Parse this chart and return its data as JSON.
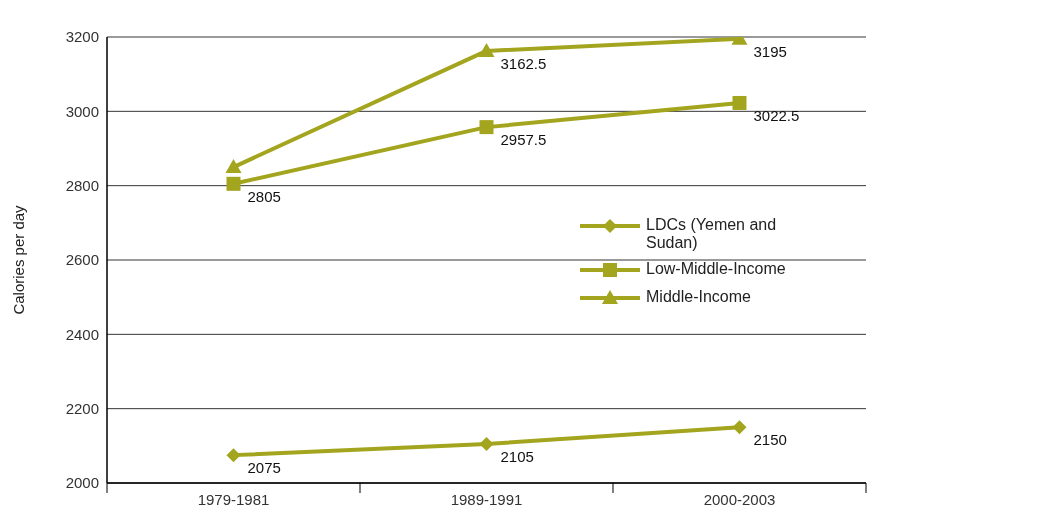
{
  "chart_data": {
    "type": "line",
    "ylabel": "Calories per day",
    "categories": [
      "1979-1981",
      "1989-1991",
      "2000-2003"
    ],
    "series": [
      {
        "name": "LDCs (Yemen and Sudan)",
        "color": "#a2a51d",
        "marker": "diamond",
        "values": [
          2075,
          2105,
          2150
        ],
        "value_labels": [
          "2075",
          "2105",
          "2150"
        ]
      },
      {
        "name": "Low-Middle-Income",
        "color": "#a2a51d",
        "marker": "square",
        "values": [
          2805,
          2957.5,
          3022.5
        ],
        "value_labels": [
          "2805",
          "2957.5",
          "3022.5"
        ]
      },
      {
        "name": "Middle-Income",
        "color": "#a2a51d",
        "marker": "triangle",
        "values": [
          2850,
          3162.5,
          3195
        ],
        "value_labels": [
          null,
          "3162.5",
          "3195"
        ]
      }
    ],
    "ylim": [
      2000,
      3200
    ],
    "yticks": [
      2000,
      2200,
      2400,
      2600,
      2800,
      3000,
      3200
    ],
    "grid": "y",
    "legend": "right"
  }
}
